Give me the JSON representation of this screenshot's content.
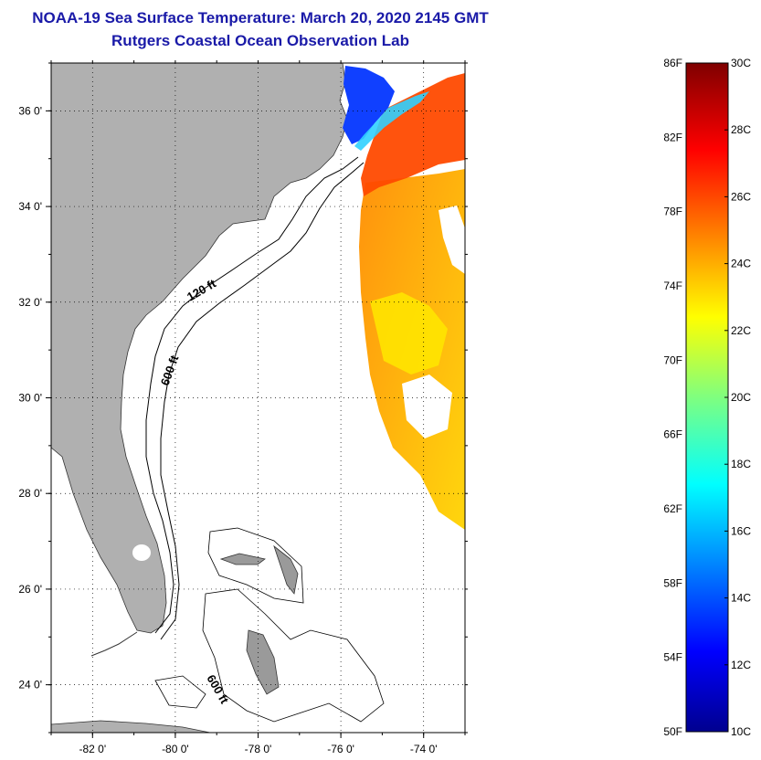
{
  "title": "NOAA-19 Sea Surface Temperature:  March 20, 2020 2145 GMT",
  "subtitle": "Rutgers Coastal Ocean Observation Lab",
  "map": {
    "lon_ticks": [
      {
        "value": -82,
        "label": "-82 0'"
      },
      {
        "value": -80,
        "label": "-80 0'"
      },
      {
        "value": -78,
        "label": "-78 0'"
      },
      {
        "value": -76,
        "label": "-76 0'"
      },
      {
        "value": -74,
        "label": "-74 0'"
      }
    ],
    "lat_ticks": [
      {
        "value": 36,
        "label": "36 0'"
      },
      {
        "value": 34,
        "label": "34 0'"
      },
      {
        "value": 32,
        "label": "32 0'"
      },
      {
        "value": 30,
        "label": "30 0'"
      },
      {
        "value": 28,
        "label": "28 0'"
      },
      {
        "value": 26,
        "label": "26 0'"
      },
      {
        "value": 24,
        "label": "24 0'"
      }
    ],
    "lon_range": [
      -83,
      -73
    ],
    "lat_range": [
      23,
      37
    ],
    "contour_labels": [
      "120 ft",
      "600 ft",
      "600 ft"
    ],
    "colors": {
      "land": "#b0b0b0",
      "water_nodata": "#ffffff",
      "grid": "#000000"
    }
  },
  "colorbar": {
    "fahrenheit_labels": [
      "86F",
      "82F",
      "78F",
      "74F",
      "70F",
      "66F",
      "62F",
      "58F",
      "54F",
      "50F"
    ],
    "celsius_labels": [
      "30C",
      "28C",
      "26C",
      "24C",
      "22C",
      "20C",
      "18C",
      "16C",
      "14C",
      "12C",
      "10C"
    ],
    "range_c": [
      10,
      30
    ],
    "range_f": [
      50,
      86
    ]
  }
}
